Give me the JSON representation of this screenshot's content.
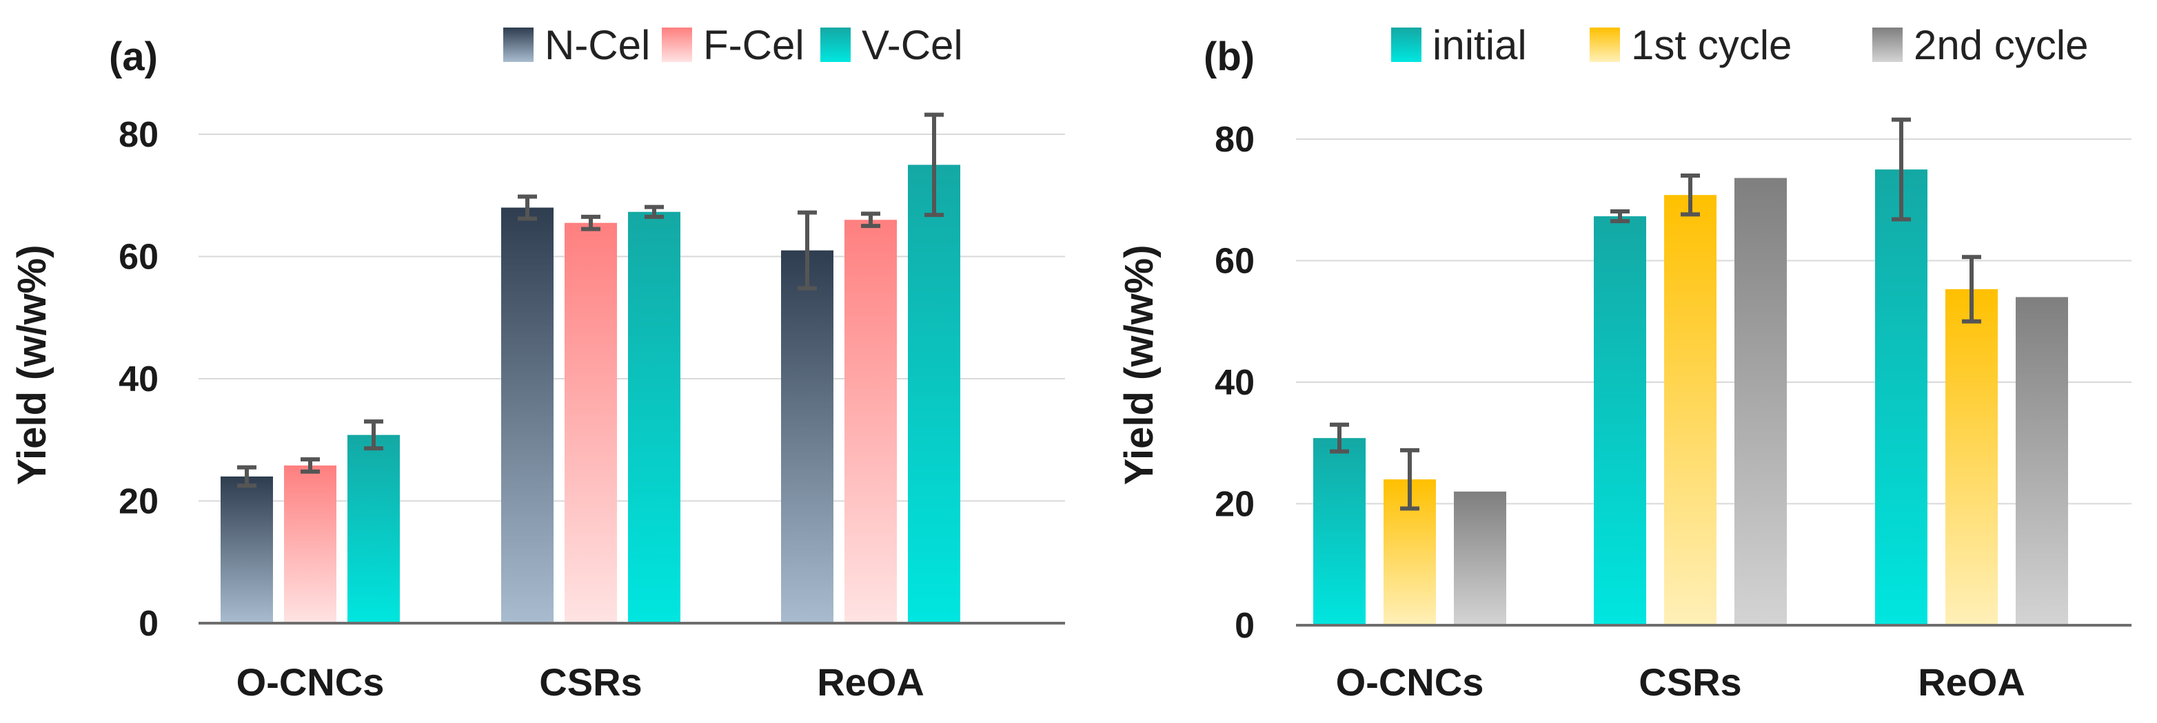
{
  "chart_data": [
    {
      "type": "bar",
      "panel_label": "(a)",
      "ylabel": "Yield (w/w%)",
      "ylim": [
        0,
        80
      ],
      "yticks": [
        0,
        20,
        40,
        60,
        80
      ],
      "grid": true,
      "legend_position": "top",
      "categories": [
        "O-CNCs",
        "CSRs",
        "ReOA"
      ],
      "series": [
        {
          "name": "N-Cel",
          "values": [
            24,
            68,
            61
          ],
          "errors": [
            1.5,
            1.8,
            6.2
          ],
          "color_top": "#2e3d4f",
          "color_bottom": "#a9bccf"
        },
        {
          "name": "F-Cel",
          "values": [
            25.8,
            65.5,
            66
          ],
          "errors": [
            1.0,
            1.0,
            1.0
          ],
          "color_top": "#ff7f7f",
          "color_bottom": "#ffe3e3"
        },
        {
          "name": "V-Cel",
          "values": [
            30.8,
            67.3,
            75
          ],
          "errors": [
            2.2,
            0.8,
            8.2
          ],
          "color_top": "#14a8a4",
          "color_bottom": "#00e6e0"
        }
      ]
    },
    {
      "type": "bar",
      "panel_label": "(b)",
      "ylabel": "Yield (w/w%)",
      "ylim": [
        0,
        80
      ],
      "yticks": [
        0,
        20,
        40,
        60,
        80
      ],
      "grid": true,
      "legend_position": "top",
      "categories": [
        "O-CNCs",
        "CSRs",
        "ReOA"
      ],
      "series": [
        {
          "name": "initial",
          "values": [
            30.8,
            67.3,
            75
          ],
          "errors": [
            2.2,
            0.8,
            8.2
          ],
          "color_top": "#14a8a4",
          "color_bottom": "#00e6e0"
        },
        {
          "name": "1st cycle",
          "values": [
            24,
            70.8,
            55.3
          ],
          "errors": [
            4.8,
            3.2,
            5.3
          ],
          "color_top": "#ffc000",
          "color_bottom": "#fff0b8"
        },
        {
          "name": "2nd cycle",
          "values": [
            22,
            73.6,
            54
          ],
          "errors": [
            null,
            null,
            null
          ],
          "color_top": "#7f7f7f",
          "color_bottom": "#d4d4d4"
        }
      ]
    }
  ]
}
